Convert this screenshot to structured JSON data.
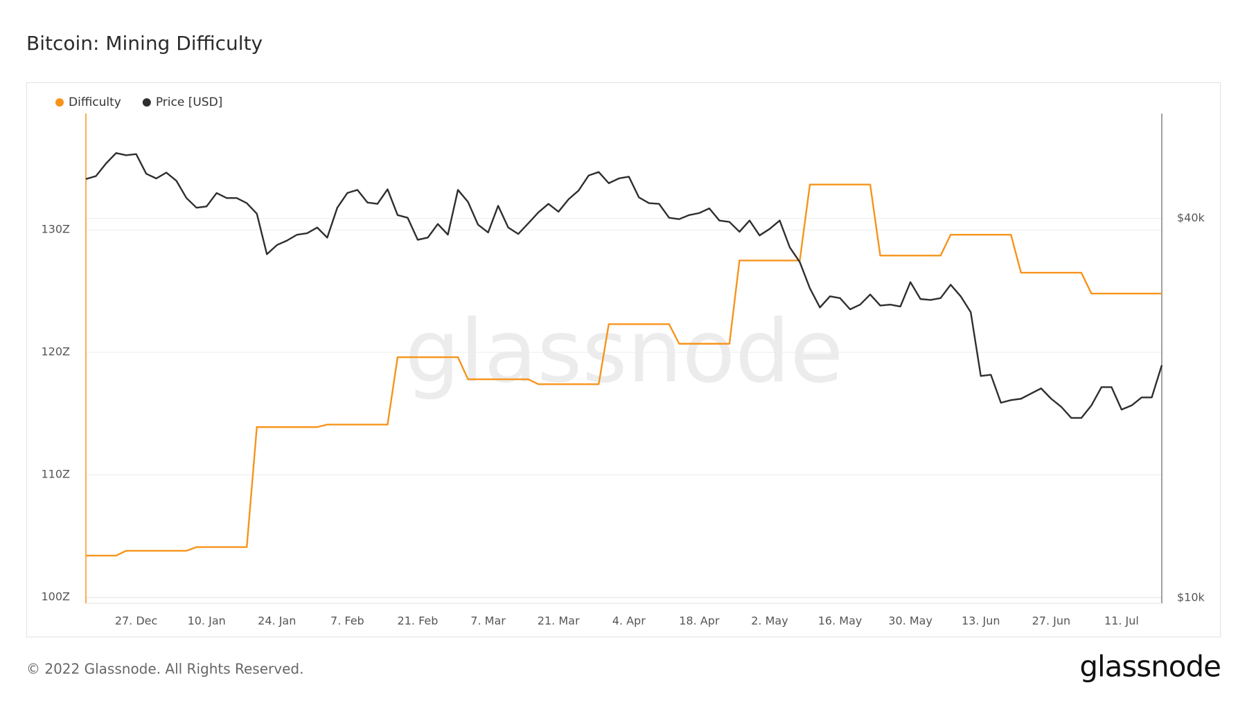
{
  "chart_data": {
    "type": "line",
    "title": "Bitcoin: Mining Difficulty",
    "categories": [
      null,
      null,
      null,
      null,
      null,
      "27. Dec",
      null,
      null,
      null,
      null,
      null,
      null,
      "10. Jan",
      null,
      null,
      null,
      null,
      null,
      null,
      "24. Jan",
      null,
      null,
      null,
      null,
      null,
      null,
      "7. Feb",
      null,
      null,
      null,
      null,
      null,
      null,
      "21. Feb",
      null,
      null,
      null,
      null,
      null,
      null,
      "7. Mar",
      null,
      null,
      null,
      null,
      null,
      null,
      "21. Mar",
      null,
      null,
      null,
      null,
      null,
      null,
      "4. Apr",
      null,
      null,
      null,
      null,
      null,
      null,
      "18. Apr",
      null,
      null,
      null,
      null,
      null,
      null,
      "2. May",
      null,
      null,
      null,
      null,
      null,
      null,
      "16. May",
      null,
      null,
      null,
      null,
      null,
      null,
      "30. May",
      null,
      null,
      null,
      null,
      null,
      null,
      "13. Jun",
      null,
      null,
      null,
      null,
      null,
      null,
      "27. Jun",
      null,
      null,
      null,
      null,
      null,
      null,
      "11. Jul",
      null,
      null,
      null,
      null
    ],
    "series": [
      {
        "name": "Difficulty",
        "color": "#f7931a",
        "axis": "y",
        "values": [
          103.4,
          103.4,
          103.4,
          103.4,
          103.8,
          103.8,
          103.8,
          103.8,
          103.8,
          103.8,
          103.8,
          104.1,
          104.1,
          104.1,
          104.1,
          104.1,
          104.1,
          113.9,
          113.9,
          113.9,
          113.9,
          113.9,
          113.9,
          113.9,
          114.1,
          114.1,
          114.1,
          114.1,
          114.1,
          114.1,
          114.1,
          119.6,
          119.6,
          119.6,
          119.6,
          119.6,
          119.6,
          119.6,
          117.8,
          117.8,
          117.8,
          117.8,
          117.8,
          117.8,
          117.8,
          117.4,
          117.4,
          117.4,
          117.4,
          117.4,
          117.4,
          117.4,
          122.3,
          122.3,
          122.3,
          122.3,
          122.3,
          122.3,
          122.3,
          120.7,
          120.7,
          120.7,
          120.7,
          120.7,
          120.7,
          127.5,
          127.5,
          127.5,
          127.5,
          127.5,
          127.5,
          127.5,
          133.7,
          133.7,
          133.7,
          133.7,
          133.7,
          133.7,
          133.7,
          127.9,
          127.9,
          127.9,
          127.9,
          127.9,
          127.9,
          127.9,
          129.6,
          129.6,
          129.6,
          129.6,
          129.6,
          129.6,
          129.6,
          126.5,
          126.5,
          126.5,
          126.5,
          126.5,
          126.5,
          126.5,
          124.8,
          124.8,
          124.8,
          124.8,
          124.8,
          124.8,
          124.8,
          124.8
        ]
      },
      {
        "name": "Price [USD]",
        "color": "#2e2e2e",
        "axis": "y2",
        "values": [
          46200,
          46700,
          48900,
          50800,
          50400,
          50600,
          47100,
          46300,
          47300,
          45900,
          43100,
          41600,
          41800,
          43900,
          43100,
          43100,
          42300,
          40700,
          35100,
          36300,
          36900,
          37700,
          37900,
          38700,
          37300,
          41600,
          43900,
          44400,
          42400,
          42200,
          44500,
          40500,
          40100,
          37000,
          37300,
          39200,
          37700,
          44400,
          42500,
          39100,
          38000,
          41900,
          38700,
          37800,
          39300,
          40900,
          42200,
          41000,
          42900,
          44300,
          46800,
          47400,
          45500,
          46300,
          46600,
          43200,
          42300,
          42200,
          40100,
          39900,
          40500,
          40800,
          41500,
          39700,
          39500,
          38100,
          39700,
          37600,
          38500,
          39700,
          36000,
          34100,
          31000,
          28900,
          30100,
          29900,
          28700,
          29200,
          30300,
          29100,
          29200,
          29000,
          31700,
          29800,
          29700,
          29900,
          31400,
          30100,
          28400,
          22500,
          22600,
          20400,
          20600,
          20700,
          21100,
          21500,
          20700,
          20100,
          19300,
          19300,
          20200,
          21600,
          21600,
          19900,
          20200,
          20800,
          20800,
          23400
        ]
      }
    ],
    "ylim": [
      99.5,
      139.5
    ],
    "yticks": [
      {
        "value": 100,
        "label": "100Z"
      },
      {
        "value": 110,
        "label": "110Z"
      },
      {
        "value": 120,
        "label": "120Z"
      },
      {
        "value": 130,
        "label": "130Z"
      }
    ],
    "y2lim": [
      9800,
      58700
    ],
    "y2scale": "log",
    "y2ticks": [
      {
        "value": 10000,
        "label": "$10k"
      },
      {
        "value": 40000,
        "label": "$40k"
      }
    ],
    "grid": true,
    "legend": "top-left"
  },
  "watermark": "glassnode",
  "footer": {
    "copyright": "© 2022 Glassnode. All Rights Reserved.",
    "logo": "glassnode"
  }
}
